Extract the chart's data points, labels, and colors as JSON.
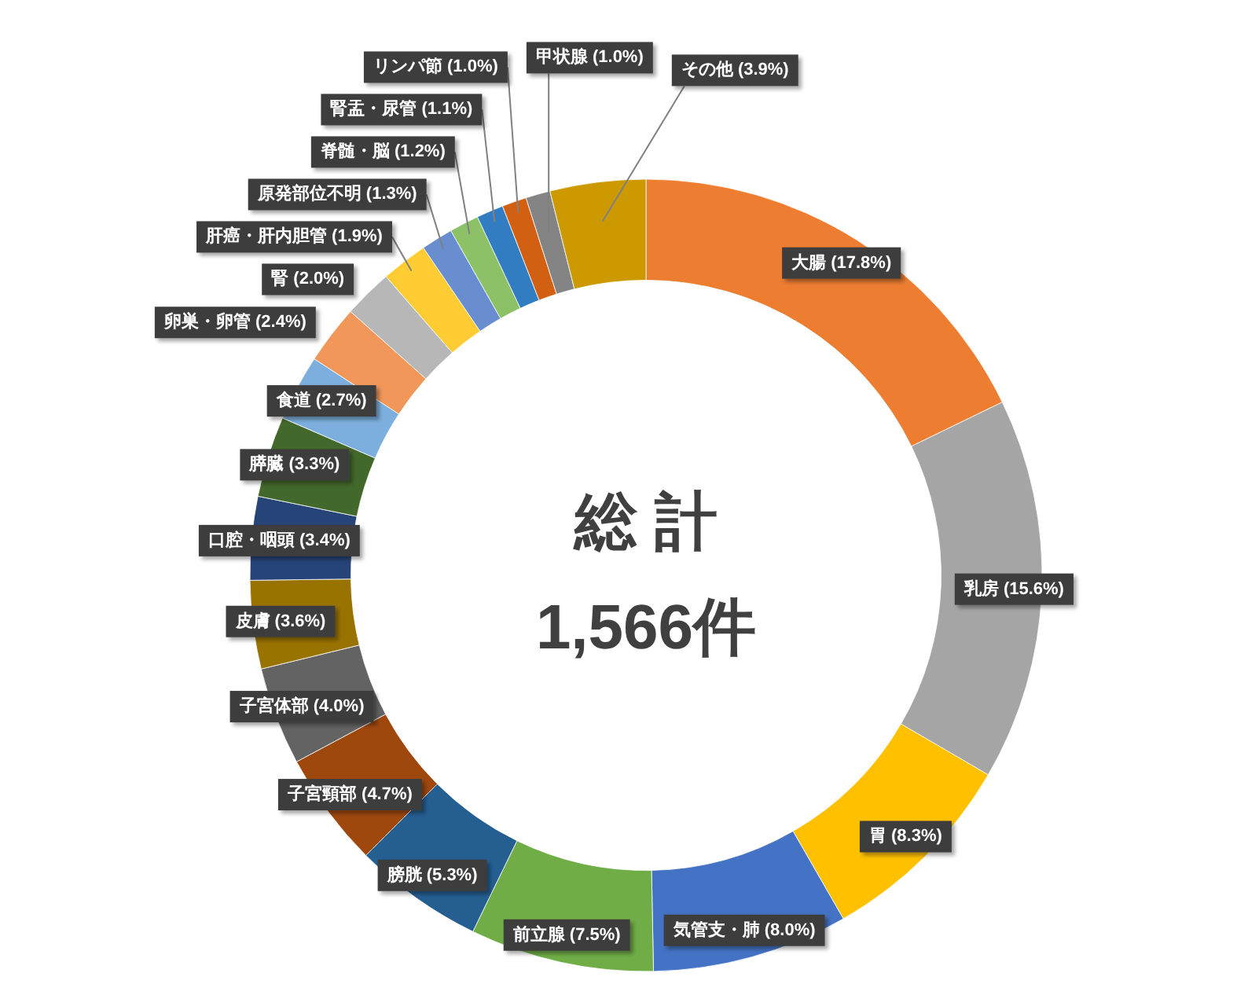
{
  "chart_data": {
    "type": "donut",
    "categories": [
      "大腸",
      "乳房",
      "胃",
      "気管支・肺",
      "前立腺",
      "膀胱",
      "子宮頸部",
      "子宮体部",
      "皮膚",
      "口腔・咽頭",
      "膵臓",
      "食道",
      "卵巣・卵管",
      "腎",
      "肝癌・肝内胆管",
      "原発部位不明",
      "脊髄・脳",
      "腎盂・尿管",
      "リンパ節",
      "甲状腺",
      "その他"
    ],
    "values": [
      17.8,
      15.6,
      8.3,
      8.0,
      7.5,
      5.3,
      4.7,
      4.0,
      3.6,
      3.4,
      3.3,
      2.7,
      2.4,
      2.0,
      1.9,
      1.3,
      1.2,
      1.1,
      1.0,
      1.0,
      3.9
    ],
    "value_labels": [
      "(17.8%)",
      "(15.6%)",
      "(8.3%)",
      "(8.0%)",
      "(7.5%)",
      "(5.3%)",
      "(4.7%)",
      "(4.0%)",
      "(3.6%)",
      "(3.4%)",
      "(3.3%)",
      "(2.7%)",
      "(2.4%)",
      "(2.0%)",
      "(1.9%)",
      "(1.3%)",
      "(1.2%)",
      "(1.1%)",
      "(1.0%)",
      "(1.0%)",
      "(3.9%)"
    ],
    "colors": [
      "#ed7d31",
      "#a5a5a5",
      "#ffc000",
      "#4472c4",
      "#70ad47",
      "#255e91",
      "#9e480e",
      "#636363",
      "#997300",
      "#264478",
      "#43682b",
      "#7cafdd",
      "#f1975a",
      "#b7b7b7",
      "#ffcd33",
      "#698ed0",
      "#8cc168",
      "#327dc2",
      "#d26012",
      "#848484",
      "#cc9a00"
    ],
    "annotations": [
      "総 計",
      "1,566件"
    ]
  }
}
